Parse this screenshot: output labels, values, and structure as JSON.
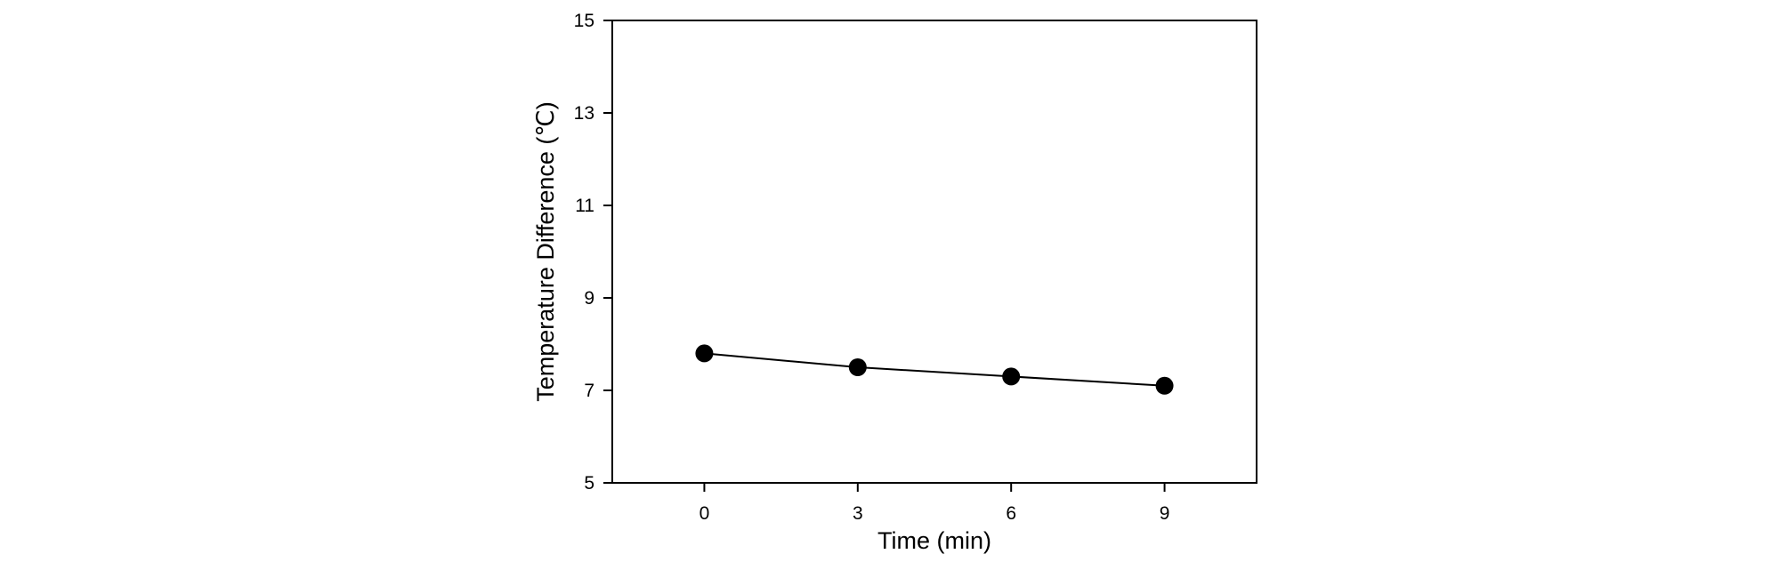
{
  "chart_data": {
    "type": "line",
    "title": "",
    "xlabel": "Time (min)",
    "ylabel": "Temperature Difference (℃)",
    "x_ticks": [
      "0",
      "3",
      "6",
      "9"
    ],
    "y_ticks": [
      "5",
      "7",
      "9",
      "11",
      "13",
      "15"
    ],
    "xlim": [
      -1.8,
      10.8
    ],
    "ylim": [
      5,
      15
    ],
    "grid": false,
    "legend": "none",
    "series": [
      {
        "color": "#000000",
        "marker": "filled-circle",
        "points": [
          {
            "x": 0,
            "y": 7.8
          },
          {
            "x": 3,
            "y": 7.5
          },
          {
            "x": 6,
            "y": 7.3
          },
          {
            "x": 9,
            "y": 7.1
          }
        ]
      }
    ]
  }
}
